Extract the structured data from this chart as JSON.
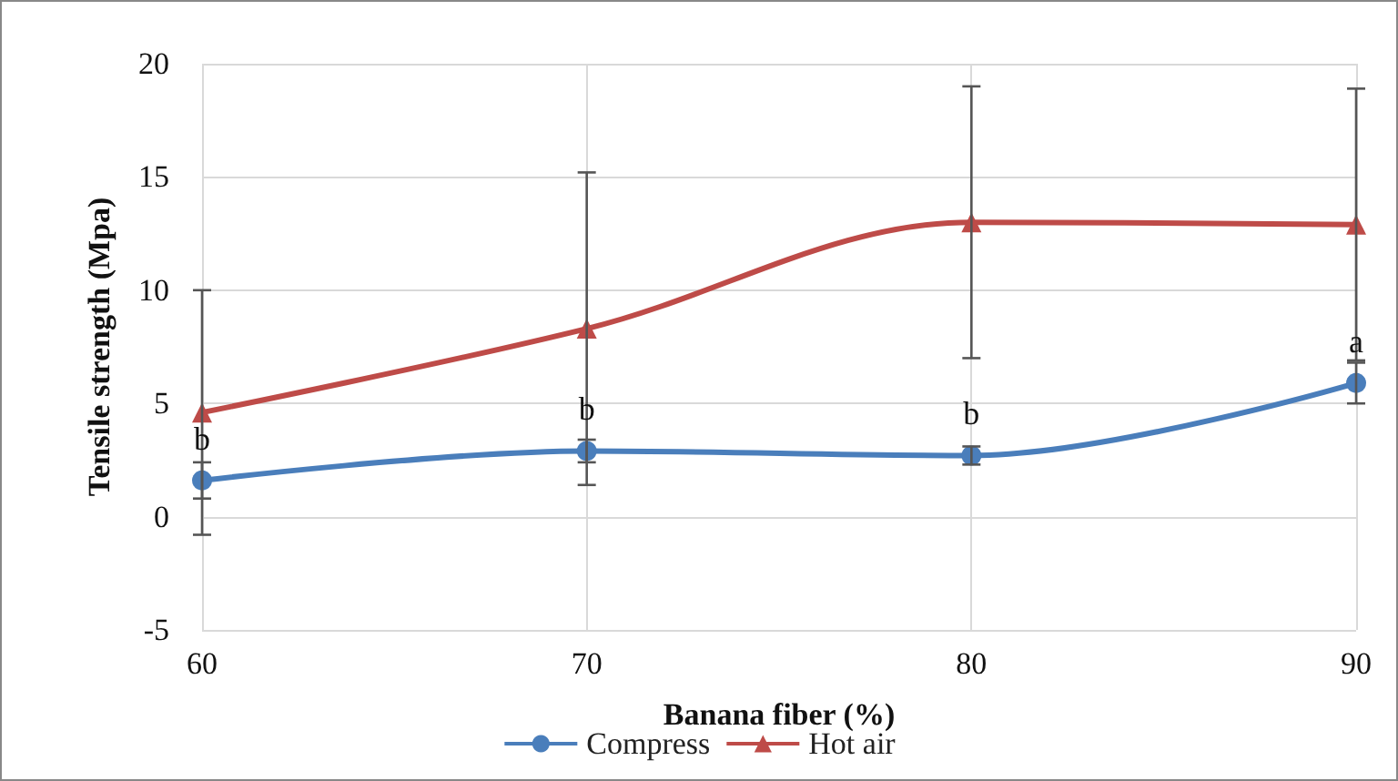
{
  "chart_data": {
    "type": "line",
    "xlabel": "Banana fiber (%)",
    "ylabel": "Tensile strength (Mpa)",
    "x": [
      60,
      70,
      80,
      90
    ],
    "series": [
      {
        "name": "Compress",
        "color": "#4a7ebb",
        "marker": "circle",
        "values": [
          1.6,
          2.9,
          2.7,
          5.9
        ],
        "errors": [
          0.8,
          0.5,
          0.4,
          0.9
        ]
      },
      {
        "name": "Hot air",
        "color": "#be4b48",
        "marker": "triangle",
        "values": [
          4.6,
          8.3,
          13.0,
          12.9
        ],
        "errors": [
          5.4,
          6.9,
          6.0,
          6.0
        ]
      }
    ],
    "xlim": [
      60,
      90
    ],
    "xticks": [
      60,
      70,
      80,
      90
    ],
    "ylim": [
      -5,
      20
    ],
    "yticks": [
      -5,
      0,
      5,
      10,
      15,
      20
    ],
    "grid": true,
    "legend": "bottom",
    "annotations": [
      {
        "text": "b",
        "x": 60,
        "y": 1.6
      },
      {
        "text": "b",
        "x": 70,
        "y": 2.9
      },
      {
        "text": "b",
        "x": 80,
        "y": 2.7
      },
      {
        "text": "a",
        "x": 90,
        "y": 5.9
      }
    ]
  }
}
